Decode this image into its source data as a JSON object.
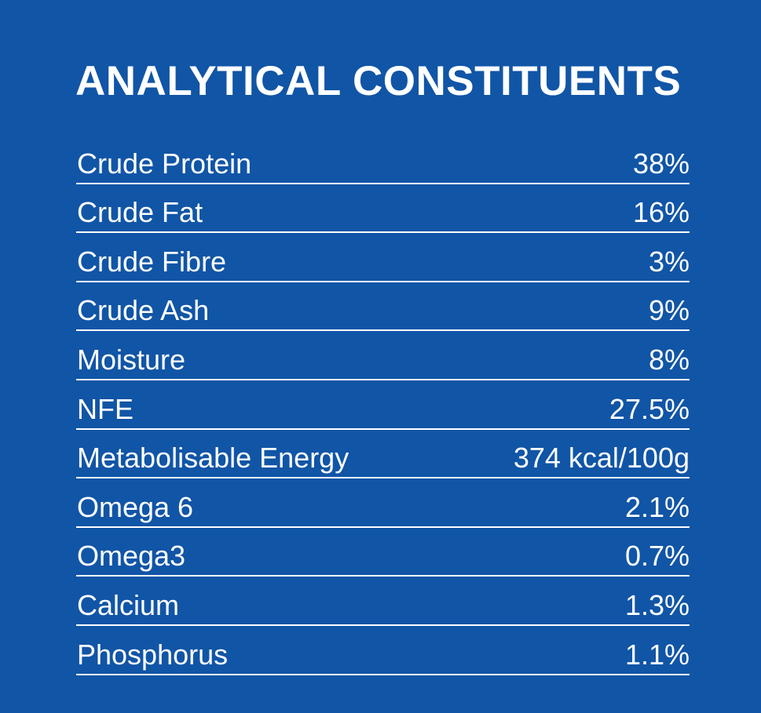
{
  "title": "ANALYTICAL CONSTITUENTS",
  "colors": {
    "background": "#1155a6",
    "text": "#ffffff"
  },
  "rows": [
    {
      "label": "Crude Protein",
      "value": "38%"
    },
    {
      "label": "Crude Fat",
      "value": "16%"
    },
    {
      "label": "Crude Fibre",
      "value": "3%"
    },
    {
      "label": "Crude Ash",
      "value": "9%"
    },
    {
      "label": "Moisture",
      "value": "8%"
    },
    {
      "label": "NFE",
      "value": "27.5%"
    },
    {
      "label": "Metabolisable Energy",
      "value": "374 kcal/100g"
    },
    {
      "label": "Omega 6",
      "value": "2.1%"
    },
    {
      "label": "Omega3",
      "value": "0.7%"
    },
    {
      "label": "Calcium",
      "value": "1.3%"
    },
    {
      "label": "Phosphorus",
      "value": "1.1%"
    }
  ]
}
